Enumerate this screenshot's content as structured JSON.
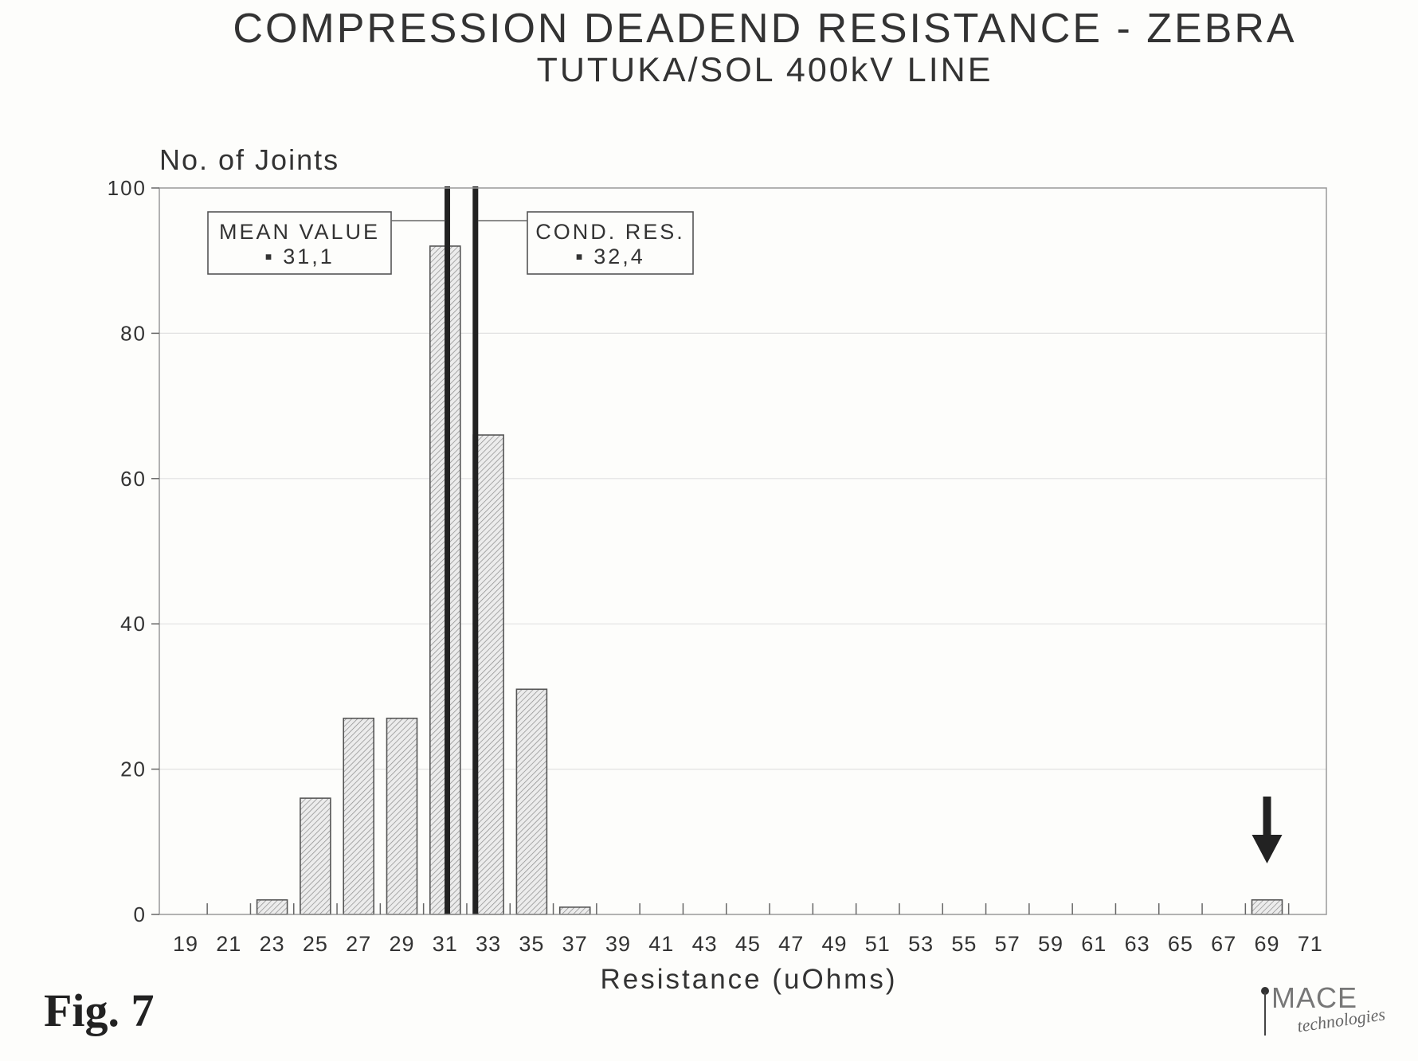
{
  "figure_label": "Fig. 7",
  "logo": {
    "name": "MACE",
    "sub": "technologies"
  },
  "chart_data": {
    "type": "bar",
    "title": "COMPRESSION DEADEND RESISTANCE - ZEBRA",
    "subtitle": "TUTUKA/SOL 400kV LINE",
    "xlabel": "Resistance (uOhms)",
    "ylabel": "No. of Joints",
    "ylim": [
      0,
      100
    ],
    "yticks": [
      0,
      20,
      40,
      60,
      80,
      100
    ],
    "grid": true,
    "categories": [
      "19",
      "21",
      "23",
      "25",
      "27",
      "29",
      "31",
      "33",
      "35",
      "37",
      "39",
      "41",
      "43",
      "45",
      "47",
      "49",
      "51",
      "53",
      "55",
      "57",
      "59",
      "61",
      "63",
      "65",
      "67",
      "69",
      "71"
    ],
    "values": [
      0,
      0,
      2,
      16,
      27,
      27,
      92,
      66,
      31,
      1,
      0,
      0,
      0,
      0,
      0,
      0,
      0,
      0,
      0,
      0,
      0,
      0,
      0,
      0,
      0,
      2,
      0
    ],
    "bar_color": "#d8d8d8",
    "reference_lines": [
      {
        "value": 31.1,
        "label": "MEAN VALUE",
        "value_text": "▪ 31,1"
      },
      {
        "value": 32.4,
        "label": "COND. RES.",
        "value_text": "▪ 32,4"
      }
    ],
    "marker": {
      "category": "69",
      "icon": "arrow-down-icon"
    }
  }
}
